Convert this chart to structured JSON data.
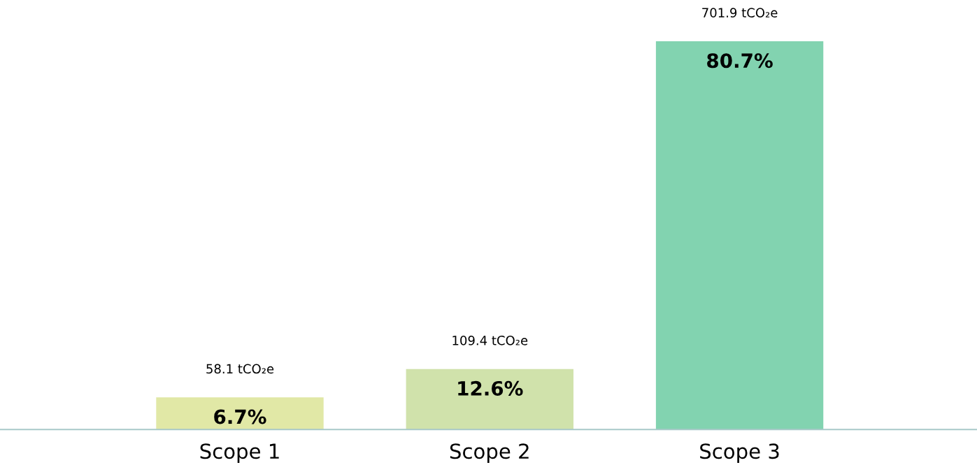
{
  "chart_data": {
    "type": "bar",
    "categories": [
      "Scope 1",
      "Scope 2",
      "Scope 3"
    ],
    "values": [
      58.1,
      109.4,
      701.9
    ],
    "colors": [
      "#e1e8a6",
      "#d0e2ab",
      "#82d3b0"
    ],
    "value_labels": [
      "58.1 tCO₂e",
      "109.4 tCO₂e",
      "701.9 tCO₂e"
    ],
    "annotations": [
      "6.7%",
      "12.6%",
      "80.7%"
    ],
    "grid": false,
    "legend": false
  }
}
